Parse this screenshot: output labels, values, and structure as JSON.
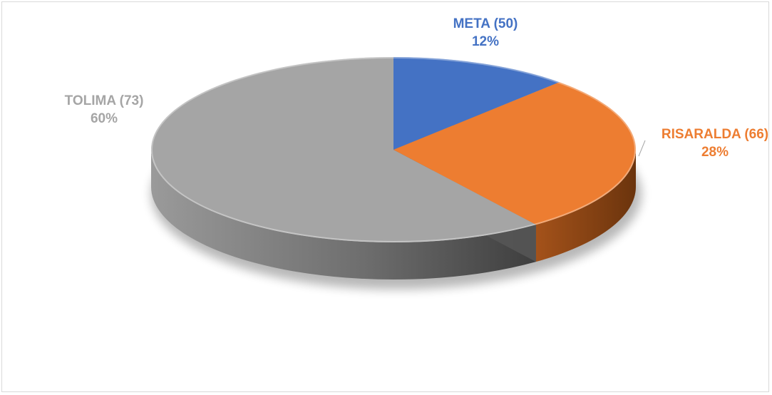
{
  "chart_data": {
    "type": "pie",
    "style": "3d",
    "title": "",
    "legend": "none",
    "slices": [
      {
        "category": "META (50)",
        "percent": 12,
        "percent_label": "12%",
        "color": "#4472c4",
        "side_color": "#2f5597"
      },
      {
        "category": "RISARALDA (66)",
        "percent": 28,
        "percent_label": "28%",
        "color": "#ed7d31",
        "side_color": "#8a4210"
      },
      {
        "category": "TOLIMA (73)",
        "percent": 60,
        "percent_label": "60%",
        "color": "#a5a5a5",
        "side_color": "#555555"
      }
    ]
  }
}
